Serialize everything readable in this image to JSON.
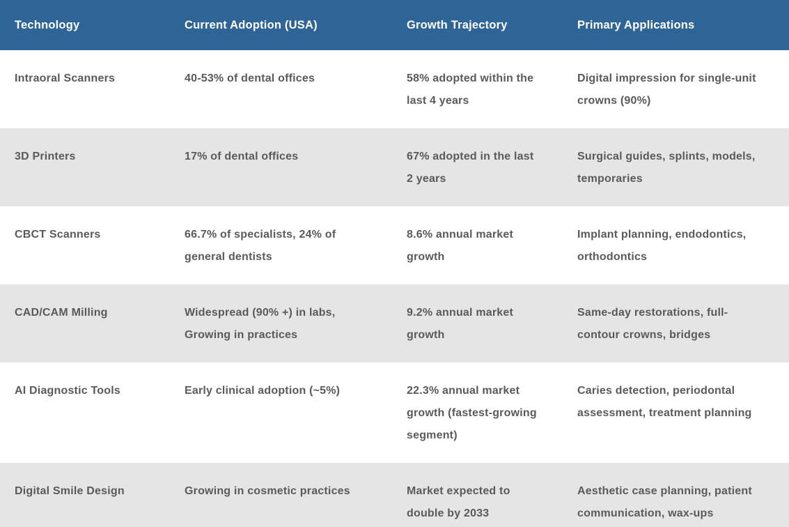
{
  "table": {
    "name": "dental-technology-adoption-table",
    "columns": [
      {
        "key": "technology",
        "label": "Technology"
      },
      {
        "key": "adoption",
        "label": "Current Adoption (USA)"
      },
      {
        "key": "growth",
        "label": "Growth Trajectory"
      },
      {
        "key": "applications",
        "label": "Primary Applications"
      }
    ],
    "rows": [
      {
        "technology": "Intraoral Scanners",
        "adoption": "40-53% of dental offices",
        "growth": "58% adopted within the last 4 years",
        "applications": "Digital impression for single-unit crowns (90%)"
      },
      {
        "technology": "3D Printers",
        "adoption": "17% of dental offices",
        "growth": "67% adopted in the last 2 years",
        "applications": "Surgical guides, splints, models, temporaries"
      },
      {
        "technology": "CBCT Scanners",
        "adoption": "66.7% of specialists, 24% of general dentists",
        "growth": "8.6% annual market growth",
        "applications": "Implant planning, endodontics, orthodontics"
      },
      {
        "technology": "CAD/CAM Milling",
        "adoption": "Widespread (90% +) in labs, Growing in practices",
        "growth": "9.2% annual market growth",
        "applications": "Same-day restorations, full-contour crowns, bridges"
      },
      {
        "technology": "AI Diagnostic Tools",
        "adoption": "Early clinical adoption (~5%)",
        "growth": "22.3% annual market growth (fastest-growing segment)",
        "applications": "Caries detection, periodontal assessment, treatment planning"
      },
      {
        "technology": "Digital Smile Design",
        "adoption": "Growing in cosmetic practices",
        "growth": "Market expected to double by 2033",
        "applications": "Aesthetic case planning, patient communication, wax-ups"
      }
    ],
    "colors": {
      "header_bg": "#2e6496",
      "header_text": "#ffffff",
      "row_bg": "#ffffff",
      "row_alt_bg": "#e5e5e5",
      "body_text": "#595a5c"
    }
  }
}
